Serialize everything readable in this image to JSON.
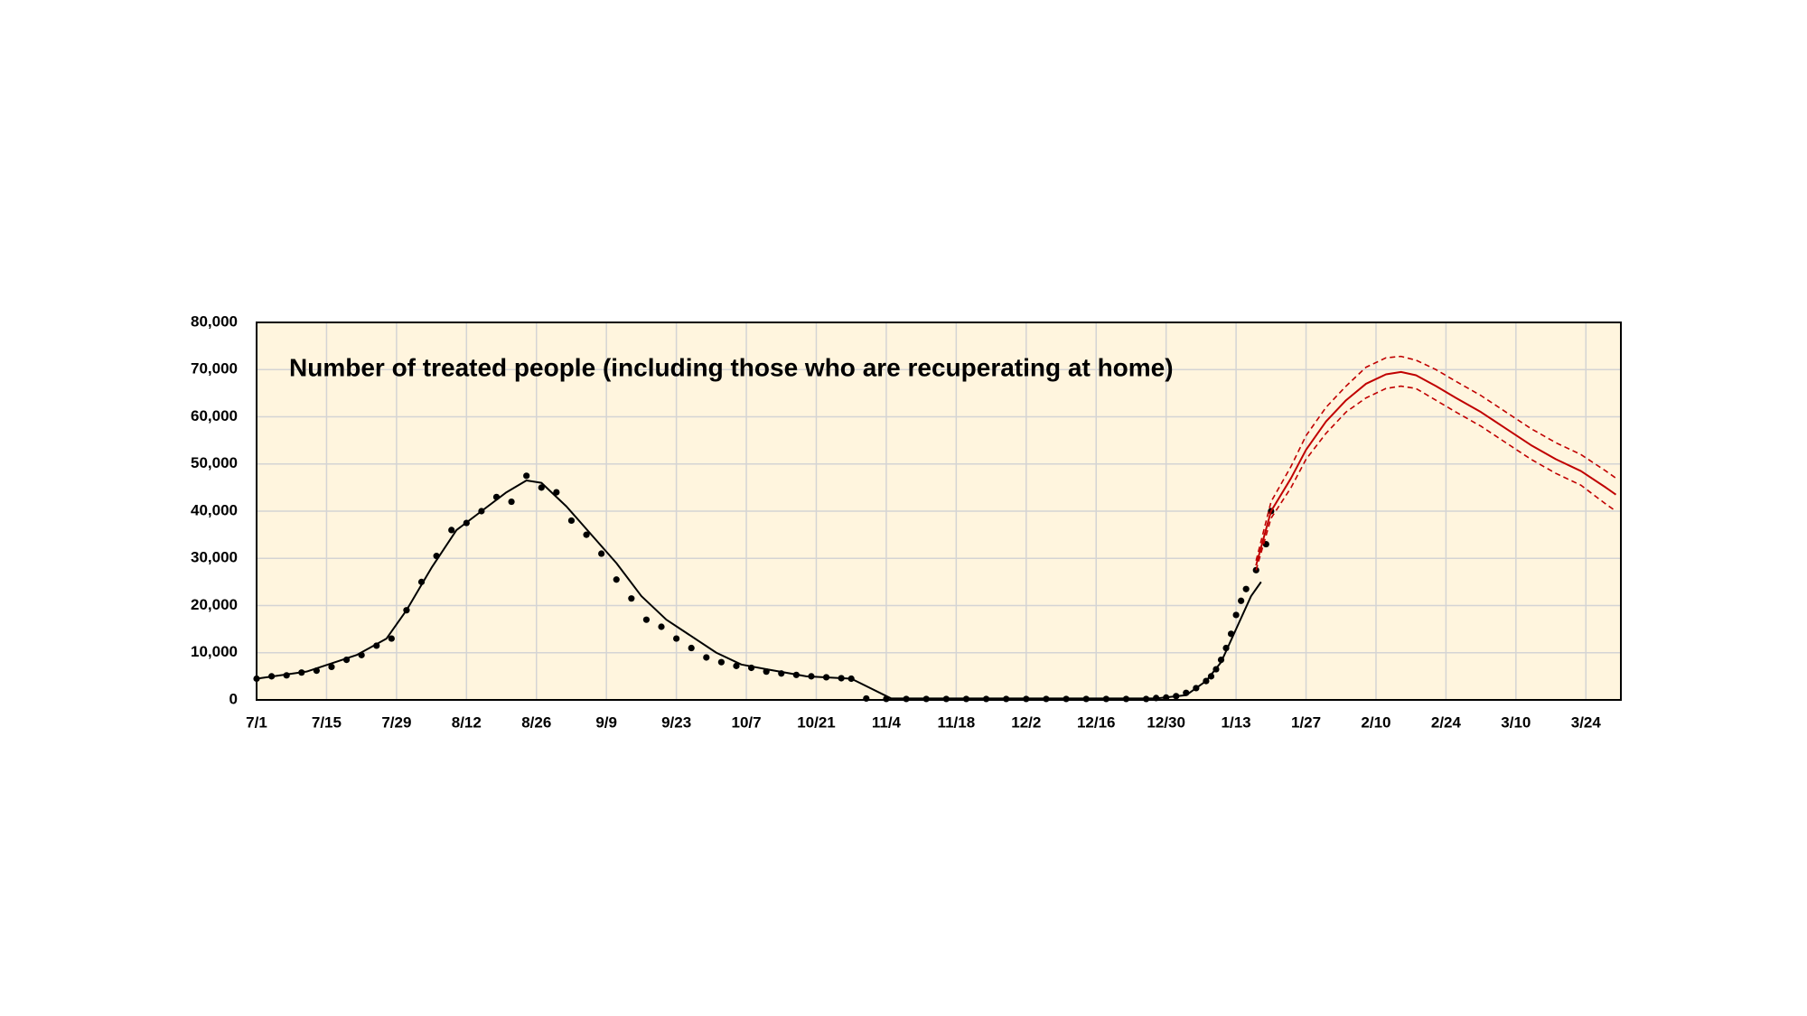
{
  "chart_data": {
    "type": "line",
    "title": "Number of treated people (including those who are recuperating at home)",
    "xlim": [
      0,
      273
    ],
    "xticks": [
      {
        "value": 0,
        "label": "7/1"
      },
      {
        "value": 14,
        "label": "7/15"
      },
      {
        "value": 28,
        "label": "7/29"
      },
      {
        "value": 42,
        "label": "8/12"
      },
      {
        "value": 56,
        "label": "8/26"
      },
      {
        "value": 70,
        "label": "9/9"
      },
      {
        "value": 84,
        "label": "9/23"
      },
      {
        "value": 98,
        "label": "10/7"
      },
      {
        "value": 112,
        "label": "10/21"
      },
      {
        "value": 126,
        "label": "11/4"
      },
      {
        "value": 140,
        "label": "11/18"
      },
      {
        "value": 154,
        "label": "12/2"
      },
      {
        "value": 168,
        "label": "12/16"
      },
      {
        "value": 182,
        "label": "12/30"
      },
      {
        "value": 196,
        "label": "1/13"
      },
      {
        "value": 210,
        "label": "1/27"
      },
      {
        "value": 224,
        "label": "2/10"
      },
      {
        "value": 238,
        "label": "2/24"
      },
      {
        "value": 252,
        "label": "3/10"
      },
      {
        "value": 266,
        "label": "3/24"
      }
    ],
    "ylim": [
      0,
      80000
    ],
    "yticks": [
      0,
      {
        "value": 10000,
        "label": "10,000"
      },
      {
        "value": 20000,
        "label": "20,000"
      },
      {
        "value": 30000,
        "label": "30,000"
      },
      {
        "value": 40000,
        "label": "40,000"
      },
      {
        "value": 50000,
        "label": "50,000"
      },
      {
        "value": 60000,
        "label": "60,000"
      },
      {
        "value": 70000,
        "label": "70,000"
      },
      {
        "value": 80000,
        "label": "80,000"
      }
    ],
    "grid": true,
    "series": [
      {
        "style": "markers",
        "color": "#000000",
        "x": [
          0,
          3,
          6,
          9,
          12,
          15,
          18,
          21,
          24,
          27,
          30,
          33,
          36,
          39,
          42,
          45,
          48,
          51,
          54,
          57,
          60,
          63,
          66,
          69,
          72,
          75,
          78,
          81,
          84,
          87,
          90,
          93,
          96,
          99,
          102,
          105,
          108,
          111,
          114,
          117,
          119,
          122,
          126,
          130,
          134,
          138,
          142,
          146,
          150,
          154,
          158,
          162,
          166,
          170,
          174,
          178,
          180,
          182,
          184,
          186,
          188,
          190,
          191,
          192,
          193,
          194,
          195,
          196,
          197,
          198,
          200,
          202,
          203
        ],
        "values": [
          4500,
          5000,
          5200,
          5800,
          6200,
          7000,
          8500,
          9500,
          11500,
          13000,
          19000,
          25000,
          30500,
          36000,
          37500,
          40000,
          43000,
          42000,
          47500,
          45000,
          44000,
          38000,
          35000,
          31000,
          25500,
          21500,
          17000,
          15500,
          13000,
          11000,
          9000,
          8000,
          7200,
          6800,
          6000,
          5600,
          5300,
          5000,
          4800,
          4600,
          4500,
          300,
          200,
          200,
          200,
          200,
          200,
          200,
          200,
          200,
          200,
          200,
          200,
          200,
          200,
          200,
          400,
          500,
          800,
          1500,
          2500,
          4000,
          5000,
          6500,
          8500,
          11000,
          14000,
          18000,
          21000,
          23500,
          27500,
          33000,
          40000
        ]
      },
      {
        "style": "solid",
        "color": "#000000",
        "x": [
          0,
          10,
          20,
          26,
          30,
          35,
          40,
          45,
          50,
          54,
          57,
          62,
          67,
          72,
          77,
          82,
          87,
          92,
          97,
          102,
          110,
          119,
          127,
          180,
          186,
          190,
          193,
          196,
          199,
          201
        ],
        "values": [
          4500,
          6000,
          9500,
          13000,
          19000,
          28000,
          36000,
          40000,
          44000,
          46500,
          46000,
          41000,
          35000,
          29000,
          22000,
          17000,
          13500,
          10000,
          7500,
          6500,
          5000,
          4500,
          300,
          300,
          1000,
          4000,
          8000,
          15000,
          22000,
          25000
        ]
      },
      {
        "style": "solid",
        "color": "#c00000",
        "x": [
          200,
          203,
          207,
          210,
          214,
          218,
          222,
          226,
          229,
          232,
          236,
          240,
          245,
          250,
          255,
          260,
          265,
          270,
          272
        ],
        "values": [
          28500,
          40000,
          47000,
          53000,
          59000,
          63500,
          67000,
          69000,
          69500,
          68800,
          66500,
          64000,
          61000,
          57500,
          54000,
          51000,
          48500,
          45000,
          43500
        ]
      },
      {
        "style": "dashed",
        "color": "#c00000",
        "x": [
          200,
          203,
          207,
          210,
          214,
          218,
          222,
          226,
          229,
          232,
          236,
          240,
          245,
          250,
          255,
          260,
          265,
          270,
          272
        ],
        "values": [
          29500,
          42000,
          49500,
          56000,
          62000,
          66500,
          70500,
          72500,
          72800,
          72000,
          70000,
          67500,
          64500,
          61000,
          57500,
          54500,
          52000,
          48500,
          47000
        ]
      },
      {
        "style": "dashed",
        "color": "#c00000",
        "x": [
          200,
          203,
          207,
          210,
          214,
          218,
          222,
          226,
          229,
          232,
          236,
          240,
          245,
          250,
          255,
          260,
          265,
          270,
          272
        ],
        "values": [
          27500,
          38500,
          45000,
          51000,
          56500,
          61000,
          64000,
          66000,
          66500,
          66000,
          63500,
          61000,
          58000,
          54500,
          51000,
          48000,
          45500,
          41500,
          40000
        ]
      }
    ]
  }
}
